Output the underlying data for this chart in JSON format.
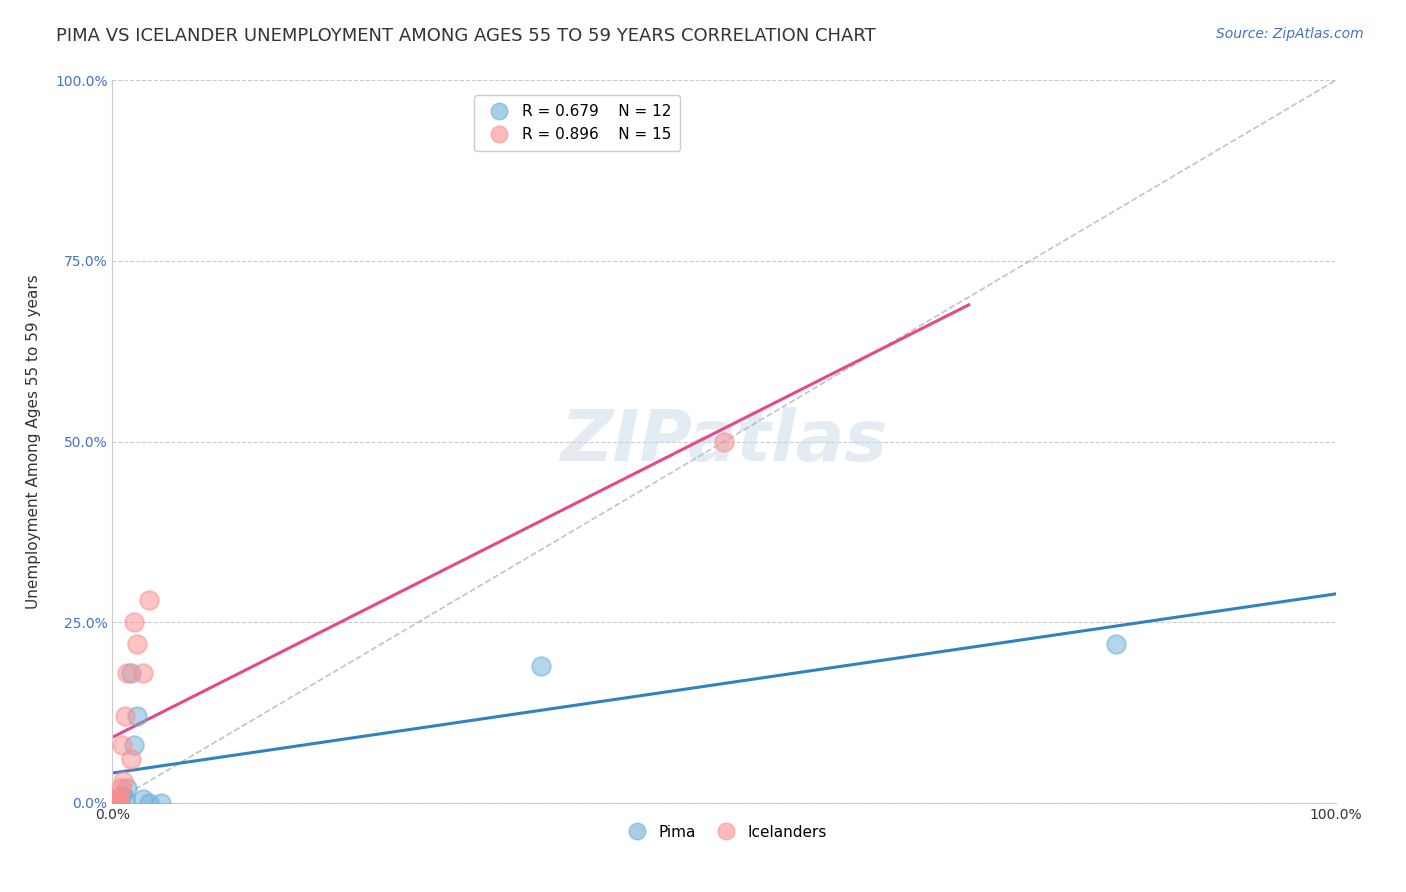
{
  "title": "PIMA VS ICELANDER UNEMPLOYMENT AMONG AGES 55 TO 59 YEARS CORRELATION CHART",
  "source": "Source: ZipAtlas.com",
  "xlabel": "",
  "ylabel": "Unemployment Among Ages 55 to 59 years",
  "xlim": [
    0,
    1.0
  ],
  "ylim": [
    0,
    1.0
  ],
  "pima_color": "#6baed6",
  "icelander_color": "#fc8d8d",
  "pima_line_color": "#3182bd",
  "icelander_line_color": "#e34a8c",
  "pima_R": 0.679,
  "pima_N": 12,
  "icelander_R": 0.896,
  "icelander_N": 15,
  "pima_x": [
    0.005,
    0.008,
    0.01,
    0.012,
    0.015,
    0.018,
    0.02,
    0.025,
    0.03,
    0.04,
    0.35,
    0.82
  ],
  "pima_y": [
    0.0,
    0.01,
    0.005,
    0.02,
    0.18,
    0.08,
    0.12,
    0.005,
    0.0,
    0.0,
    0.19,
    0.22
  ],
  "icelander_x": [
    0.002,
    0.004,
    0.005,
    0.006,
    0.007,
    0.008,
    0.009,
    0.01,
    0.012,
    0.015,
    0.018,
    0.02,
    0.025,
    0.03,
    0.5
  ],
  "icelander_y": [
    0.0,
    0.005,
    0.01,
    0.0,
    0.02,
    0.08,
    0.03,
    0.12,
    0.18,
    0.06,
    0.25,
    0.22,
    0.18,
    0.28,
    0.5
  ],
  "ytick_positions": [
    0.0,
    0.25,
    0.5,
    0.75,
    1.0
  ],
  "ytick_labels": [
    "0.0%",
    "25.0%",
    "50.0%",
    "75.0%",
    "100.0%"
  ],
  "xtick_positions": [
    0.0,
    0.125,
    0.25,
    0.375,
    0.5,
    0.625,
    0.75,
    0.875,
    1.0
  ],
  "xtick_labels": [
    "0.0%",
    "",
    "",
    "",
    "",
    "",
    "",
    "",
    "100.0%"
  ],
  "grid_color": "#cccccc",
  "background_color": "#ffffff",
  "watermark": "ZIPatlas",
  "title_fontsize": 13,
  "axis_label_fontsize": 11,
  "tick_fontsize": 10,
  "legend_fontsize": 11,
  "source_fontsize": 10
}
